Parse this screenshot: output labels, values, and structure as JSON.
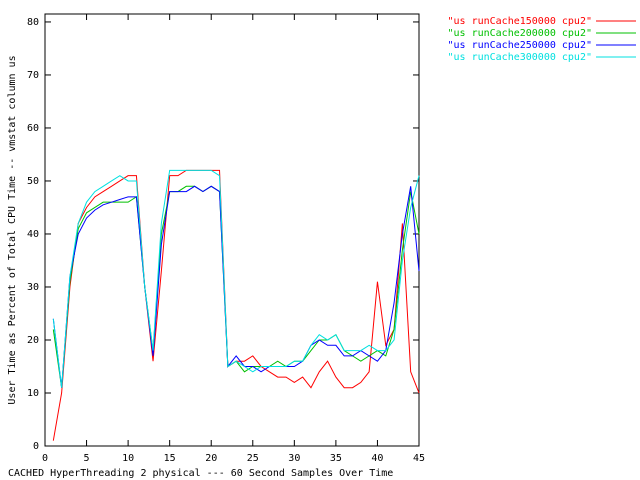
{
  "chart_data": {
    "type": "line",
    "x_label": "CACHED HyperThreading 2 physical --- 60 Second Samples Over Time",
    "y_label": "User Time as Percent of Total CPU Time -- vmstat column us",
    "x": [
      1,
      2,
      3,
      4,
      5,
      6,
      7,
      8,
      9,
      10,
      11,
      12,
      13,
      14,
      15,
      16,
      17,
      18,
      19,
      20,
      21,
      22,
      23,
      24,
      25,
      26,
      27,
      28,
      29,
      30,
      31,
      32,
      33,
      34,
      35,
      36,
      37,
      38,
      39,
      40,
      41,
      42,
      43,
      44,
      45
    ],
    "series": [
      {
        "name": "\"us runCache150000 cpu2\"",
        "color": "#ff0000",
        "values": [
          1,
          10,
          30,
          42,
          45,
          47,
          48,
          49,
          50,
          51,
          51,
          30,
          16,
          33,
          51,
          51,
          52,
          52,
          52,
          52,
          52,
          15,
          16,
          16,
          17,
          15,
          14,
          13,
          13,
          12,
          13,
          11,
          14,
          16,
          13,
          11,
          11,
          12,
          14,
          31,
          19,
          22,
          42,
          14,
          10
        ]
      },
      {
        "name": "\"us runCache200000 cpu2\"",
        "color": "#00c000",
        "values": [
          22,
          11,
          31,
          41,
          44,
          45,
          46,
          46,
          46,
          46,
          47,
          30,
          18,
          40,
          48,
          48,
          49,
          49,
          48,
          49,
          48,
          15,
          16,
          14,
          15,
          15,
          15,
          16,
          15,
          16,
          16,
          18,
          20,
          20,
          21,
          18,
          17,
          16,
          17,
          18,
          17,
          22,
          37,
          48,
          40
        ]
      },
      {
        "name": "\"us runCache250000 cpu2\"",
        "color": "#0000ff",
        "values": [
          24,
          11,
          32,
          40,
          43,
          44.5,
          45.5,
          46,
          46.5,
          47,
          47,
          30,
          17,
          38,
          48,
          48,
          48,
          49,
          48,
          49,
          48,
          15,
          17,
          15,
          15,
          14,
          15,
          15,
          15,
          15,
          16,
          19,
          20,
          19,
          19,
          17,
          17,
          18,
          17,
          16,
          18,
          27,
          40,
          49,
          33
        ]
      },
      {
        "name": "\"us runCache300000 cpu2\"",
        "color": "#00e0e0",
        "values": [
          24,
          11,
          32,
          42,
          46,
          48,
          49,
          50,
          51,
          50,
          50,
          30,
          18,
          42,
          52,
          52,
          52,
          52,
          52,
          52,
          51,
          15,
          16,
          15,
          14,
          15,
          15,
          15,
          15,
          16,
          16,
          19,
          21,
          20,
          21,
          18,
          18,
          18,
          19,
          18,
          18,
          20,
          35,
          45,
          51
        ]
      }
    ],
    "xlim": [
      0,
      45
    ],
    "xticks": [
      0,
      5,
      10,
      15,
      20,
      25,
      30,
      35,
      40,
      45
    ],
    "ylim": [
      0,
      81.5
    ],
    "yticks": [
      0,
      10,
      20,
      30,
      40,
      50,
      60,
      70,
      80
    ],
    "legend": "top-right-outside",
    "grid": false
  }
}
